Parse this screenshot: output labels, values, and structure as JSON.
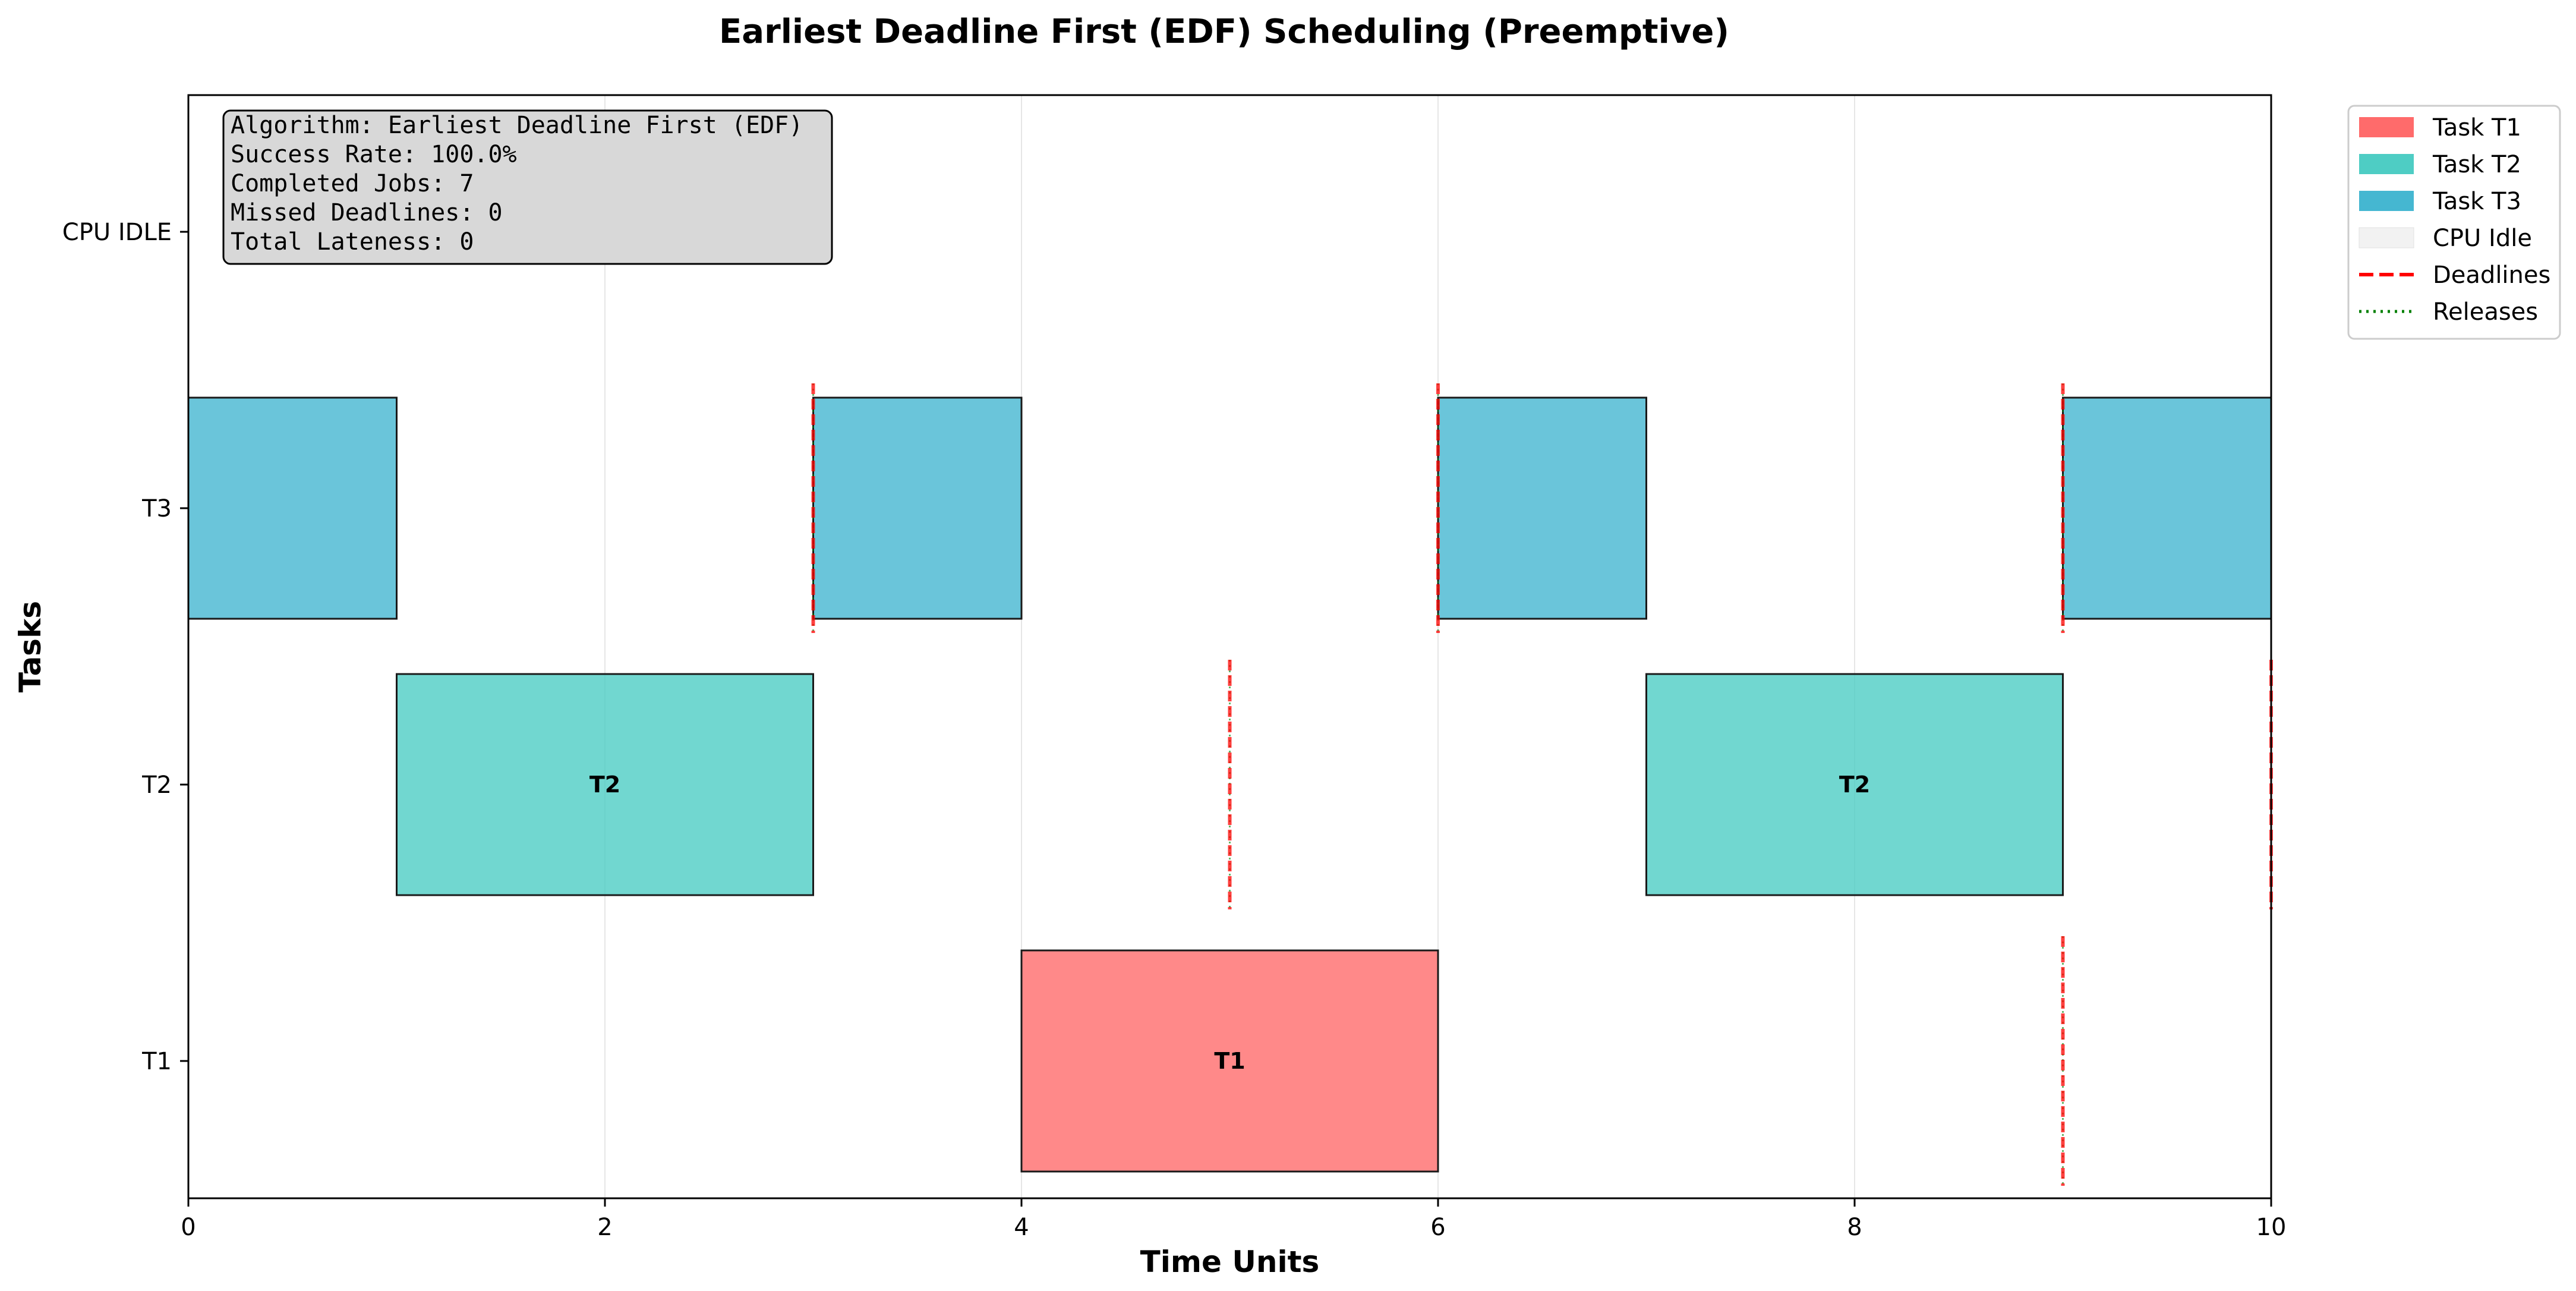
{
  "chart_data": {
    "type": "gantt",
    "title": "Earliest Deadline First (EDF) Scheduling (Preemptive)",
    "xlabel": "Time Units",
    "ylabel": "Tasks",
    "xlim": [
      0,
      10
    ],
    "x_ticks": [
      0,
      2,
      4,
      6,
      8,
      10
    ],
    "rows": [
      "T1",
      "T2",
      "T3",
      "CPU IDLE"
    ],
    "grid": "x-axis vertical lines",
    "colors": {
      "T1": "#ff6b6b",
      "T2": "#4ecdc4",
      "T3": "#45b7d1",
      "idle": "#f2f2f2",
      "deadline": "#ff0000",
      "release": "#008000",
      "border": "#1a1a1a"
    },
    "segments": [
      {
        "task": "T3",
        "start": 0,
        "end": 1,
        "row": "T3",
        "label": ""
      },
      {
        "task": "T2",
        "start": 1,
        "end": 3,
        "row": "T2",
        "label": "T2"
      },
      {
        "task": "T3",
        "start": 3,
        "end": 4,
        "row": "T3",
        "label": ""
      },
      {
        "task": "T1",
        "start": 4,
        "end": 6,
        "row": "T1",
        "label": "T1"
      },
      {
        "task": "T3",
        "start": 6,
        "end": 7,
        "row": "T3",
        "label": ""
      },
      {
        "task": "T2",
        "start": 7,
        "end": 9,
        "row": "T2",
        "label": "T2"
      },
      {
        "task": "T3",
        "start": 9,
        "end": 10,
        "row": "T3",
        "label": ""
      }
    ],
    "deadlines": [
      {
        "row": "T3",
        "time": 3
      },
      {
        "row": "T3",
        "time": 6
      },
      {
        "row": "T3",
        "time": 9
      },
      {
        "row": "T2",
        "time": 5
      },
      {
        "row": "T2",
        "time": 10
      },
      {
        "row": "T1",
        "time": 9
      }
    ],
    "info_box": [
      "Algorithm: Earliest Deadline First (EDF)",
      "Success Rate: 100.0%",
      "Completed Jobs: 7",
      "Missed Deadlines: 0",
      "Total Lateness: 0"
    ],
    "legend_placement": "outside top-right",
    "legend": [
      {
        "label": "Task T1",
        "kind": "patch",
        "color": "#ff6b6b"
      },
      {
        "label": "Task T2",
        "kind": "patch",
        "color": "#4ecdc4"
      },
      {
        "label": "Task T3",
        "kind": "patch",
        "color": "#45b7d1"
      },
      {
        "label": "CPU Idle",
        "kind": "patch",
        "color": "#f2f2f2"
      },
      {
        "label": "Deadlines",
        "kind": "dashed",
        "color": "#ff0000"
      },
      {
        "label": "Releases",
        "kind": "dotted",
        "color": "#008000"
      }
    ]
  }
}
